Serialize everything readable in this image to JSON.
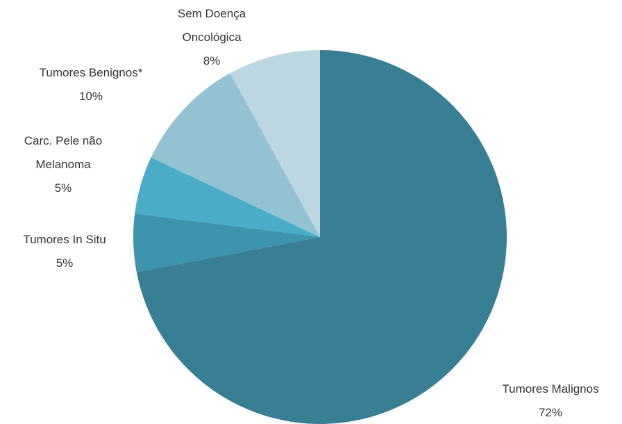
{
  "chart_data": {
    "type": "pie",
    "categories": [
      "Tumores Malignos",
      "Tumores In Situ",
      "Carc. Pele não Melanoma",
      "Tumores Benignos*",
      "Sem Doença Oncológica"
    ],
    "values": [
      72,
      5,
      5,
      10,
      8
    ],
    "value_labels": [
      "72%",
      "5%",
      "5%",
      "10%",
      "8%"
    ],
    "colors": [
      "#387f95",
      "#3e93ad",
      "#4aacc6",
      "#93c2d3",
      "#bdd7e2"
    ]
  }
}
